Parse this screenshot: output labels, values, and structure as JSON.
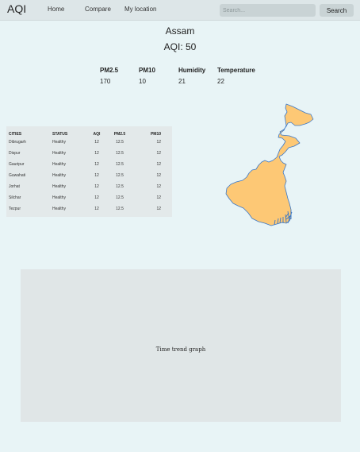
{
  "nav": {
    "brand": "AQI",
    "links": [
      "Home",
      "Compare",
      "My location"
    ],
    "search_placeholder": "Search...",
    "search_button": "Search"
  },
  "region": {
    "name": "Assam",
    "aqi": "AQI: 50"
  },
  "metrics": [
    {
      "label": "PM2.5",
      "value": "170"
    },
    {
      "label": "PM10",
      "value": "10"
    },
    {
      "label": "Humidity",
      "value": "21"
    },
    {
      "label": "Temperature",
      "value": "22"
    }
  ],
  "table": {
    "headers": [
      "CITIES",
      "STATUS",
      "AQI",
      "PM2.5",
      "PM10"
    ],
    "rows": [
      [
        "Dibrugarh",
        "Healthy",
        "12",
        "12.5",
        "12"
      ],
      [
        "Dispur",
        "Healthy",
        "12",
        "12.5",
        "12"
      ],
      [
        "Gauripur",
        "Healthy",
        "12",
        "12.5",
        "12"
      ],
      [
        "Guwahati",
        "Healthy",
        "12",
        "12.5",
        "12"
      ],
      [
        "Jorhat",
        "Healthy",
        "12",
        "12.5",
        "12"
      ],
      [
        "Silchar",
        "Healthy",
        "12",
        "12.5",
        "12"
      ],
      [
        "Tezpur",
        "Healthy",
        "12",
        "12.5",
        "12"
      ]
    ]
  },
  "map": {
    "fill_color": "#fdc875",
    "stroke_color": "#3a78c8"
  },
  "trend": {
    "placeholder": "Time trend graph"
  }
}
